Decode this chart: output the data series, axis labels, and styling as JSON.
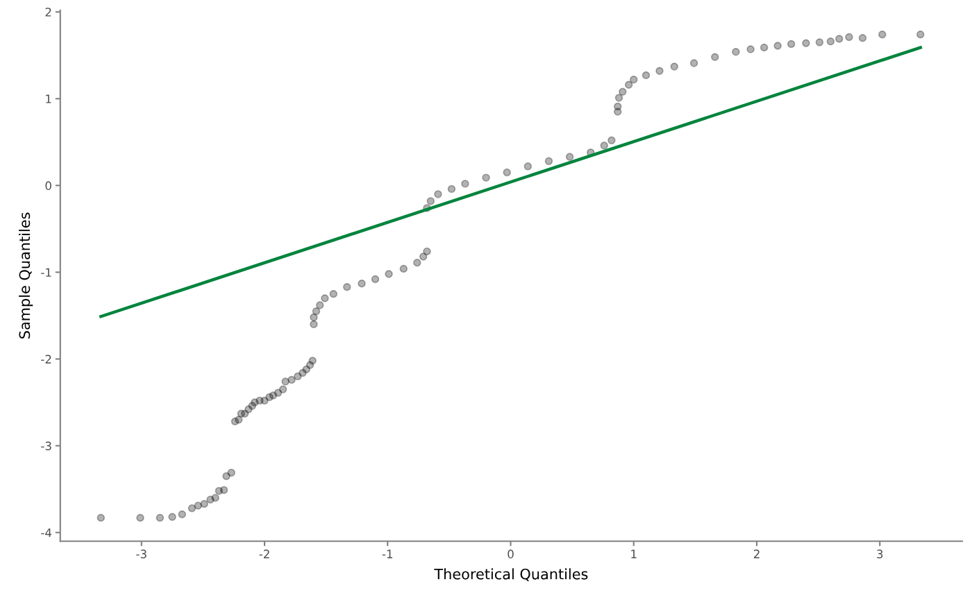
{
  "chart_data": {
    "type": "scatter",
    "xlabel": "Theoretical Quantiles",
    "ylabel": "Sample Quantiles",
    "xlim": [
      -3.66,
      3.67
    ],
    "ylim": [
      -4.1,
      2.02
    ],
    "xticks": [
      -3,
      -2,
      -1,
      0,
      1,
      2,
      3
    ],
    "yticks": [
      -4,
      -3,
      -2,
      -1,
      0,
      1,
      2
    ],
    "grid": false,
    "marker": "circle",
    "series": [
      {
        "color": "#000000",
        "x": [
          -3.33,
          -3.01,
          -2.85,
          -2.75,
          -2.67,
          -2.59,
          -2.54,
          -2.49,
          -2.44,
          -2.4,
          -2.37,
          -2.33,
          -2.31,
          -2.27,
          -2.24,
          -2.21,
          -2.19,
          -2.16,
          -2.13,
          -2.1,
          -2.08,
          -2.04,
          -2.0,
          -1.96,
          -1.93,
          -1.89,
          -1.85,
          -1.83,
          -1.78,
          -1.73,
          -1.69,
          -1.66,
          -1.63,
          -1.61,
          -1.6,
          -1.6,
          -1.58,
          -1.55,
          -1.51,
          -1.44,
          -1.33,
          -1.21,
          -1.1,
          -0.99,
          -0.87,
          -0.76,
          -0.71,
          -0.68,
          -0.68,
          -0.65,
          -0.59,
          -0.48,
          -0.37,
          -0.2,
          -0.03,
          0.14,
          0.31,
          0.48,
          0.65,
          0.76,
          0.82,
          0.87,
          0.87,
          0.88,
          0.91,
          0.96,
          1.0,
          1.1,
          1.21,
          1.33,
          1.49,
          1.66,
          1.83,
          1.95,
          2.06,
          2.17,
          2.28,
          2.4,
          2.51,
          2.6,
          2.67,
          2.75,
          2.86,
          3.02,
          3.33
        ],
        "values": [
          -3.83,
          -3.83,
          -3.83,
          -3.82,
          -3.79,
          -3.72,
          -3.69,
          -3.67,
          -3.62,
          -3.6,
          -3.52,
          -3.51,
          -3.35,
          -3.31,
          -2.72,
          -2.7,
          -2.63,
          -2.63,
          -2.58,
          -2.54,
          -2.5,
          -2.48,
          -2.48,
          -2.44,
          -2.42,
          -2.39,
          -2.35,
          -2.26,
          -2.24,
          -2.2,
          -2.16,
          -2.12,
          -2.07,
          -2.02,
          -1.6,
          -1.52,
          -1.45,
          -1.38,
          -1.3,
          -1.25,
          -1.17,
          -1.13,
          -1.08,
          -1.02,
          -0.96,
          -0.89,
          -0.82,
          -0.76,
          -0.26,
          -0.18,
          -0.1,
          -0.04,
          0.02,
          0.09,
          0.15,
          0.22,
          0.28,
          0.33,
          0.38,
          0.46,
          0.52,
          0.85,
          0.91,
          1.01,
          1.08,
          1.16,
          1.22,
          1.27,
          1.32,
          1.37,
          1.41,
          1.48,
          1.54,
          1.57,
          1.59,
          1.61,
          1.63,
          1.64,
          1.65,
          1.66,
          1.69,
          1.71,
          1.7,
          1.74,
          1.74
        ]
      },
      {
        "type": "line",
        "color": "#00843d",
        "line_style": "solid",
        "marker": "none",
        "x": [
          -3.33,
          3.33
        ],
        "values": [
          -1.51,
          1.59
        ]
      }
    ]
  }
}
